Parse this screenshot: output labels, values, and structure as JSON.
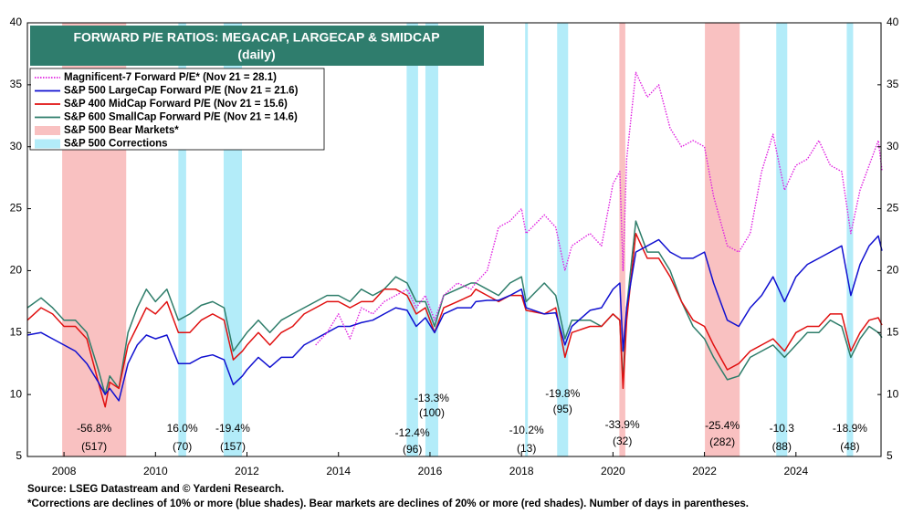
{
  "chart_data": {
    "type": "line",
    "title": "FORWARD P/E RATIOS: MEGACAP, LARGECAP & SMIDCAP",
    "subtitle": "(daily)",
    "source": "Source: LSEG Datastream and © Yardeni Research.",
    "note": "*Corrections are declines of 10% or more (blue shades). Bear markets are declines of 20% or more (red shades). Number of days in parentheses.",
    "xlim": [
      2007.2,
      2025.86
    ],
    "xticks": [
      2008,
      2010,
      2012,
      2014,
      2016,
      2018,
      2020,
      2022,
      2024
    ],
    "ylim": [
      5,
      40
    ],
    "yticks": [
      5,
      10,
      15,
      20,
      25,
      30,
      35,
      40
    ],
    "x": [
      2007.2,
      2007.5,
      2007.75,
      2008.0,
      2008.25,
      2008.5,
      2008.75,
      2008.9,
      2009.0,
      2009.2,
      2009.4,
      2009.6,
      2009.8,
      2010.0,
      2010.25,
      2010.5,
      2010.75,
      2011.0,
      2011.25,
      2011.5,
      2011.7,
      2011.9,
      2012.0,
      2012.25,
      2012.5,
      2012.75,
      2013.0,
      2013.25,
      2013.5,
      2013.75,
      2014.0,
      2014.25,
      2014.5,
      2014.75,
      2015.0,
      2015.25,
      2015.5,
      2015.7,
      2015.9,
      2016.1,
      2016.3,
      2016.6,
      2016.9,
      2017.0,
      2017.25,
      2017.5,
      2017.75,
      2018.0,
      2018.1,
      2018.5,
      2018.75,
      2018.95,
      2019.1,
      2019.5,
      2019.75,
      2020.0,
      2020.15,
      2020.22,
      2020.3,
      2020.5,
      2020.75,
      2021.0,
      2021.25,
      2021.5,
      2021.75,
      2022.0,
      2022.2,
      2022.5,
      2022.75,
      2023.0,
      2023.25,
      2023.5,
      2023.75,
      2024.0,
      2024.25,
      2024.5,
      2024.75,
      2025.0,
      2025.2,
      2025.4,
      2025.6,
      2025.8,
      2025.88
    ],
    "series": [
      {
        "name": "Magnificent-7 Forward P/E* (Nov 21 = 28.1)",
        "color": "#e020e0",
        "dash": true,
        "values": [
          null,
          null,
          null,
          null,
          null,
          null,
          null,
          null,
          null,
          null,
          null,
          null,
          null,
          null,
          null,
          null,
          null,
          null,
          null,
          null,
          null,
          null,
          null,
          null,
          null,
          null,
          null,
          null,
          14,
          15,
          16.5,
          14.5,
          17,
          16.5,
          17.5,
          18,
          18.5,
          17,
          18,
          16,
          18,
          19,
          18.5,
          19,
          20,
          23.5,
          24,
          25,
          23,
          24.5,
          23.5,
          20,
          22,
          23,
          22,
          27,
          28,
          20,
          29,
          36,
          34,
          35,
          31.5,
          30,
          30.5,
          30,
          26,
          22,
          21.5,
          23,
          28,
          31,
          26.5,
          28.5,
          29,
          30.5,
          28.5,
          28,
          23,
          26.5,
          28.5,
          30.5,
          28.1
        ]
      },
      {
        "name": "S&P 500 LargeCap Forward P/E (Nov 21 = 21.6)",
        "color": "#1010d0",
        "dash": false,
        "values": [
          14.8,
          15,
          14.5,
          14,
          13.5,
          12.5,
          11,
          10,
          10.5,
          9.5,
          12.5,
          14,
          14.8,
          14.5,
          14.8,
          12.5,
          12.5,
          13,
          13.2,
          12.8,
          10.8,
          11.5,
          12,
          13,
          12.2,
          13,
          13,
          14,
          14.5,
          15,
          15.5,
          15.5,
          15.8,
          16,
          16.5,
          17,
          16.8,
          15.5,
          16.2,
          15,
          16.5,
          17,
          17,
          17.5,
          17.6,
          17.6,
          18,
          18.5,
          17,
          16.5,
          16.6,
          14,
          15.5,
          16.8,
          17,
          18.5,
          19,
          13.5,
          17,
          21.5,
          22,
          22.5,
          21.5,
          21,
          21,
          21.5,
          19,
          16,
          15.5,
          17,
          18,
          19.5,
          17.5,
          19.5,
          20.5,
          21,
          21.5,
          22,
          18,
          20.5,
          22,
          22.8,
          21.6
        ]
      },
      {
        "name": "S&P 400 MidCap Forward P/E (Nov 21 = 15.6)",
        "color": "#e01010",
        "dash": false,
        "values": [
          16,
          17,
          16.5,
          15.5,
          15.5,
          14.5,
          11,
          9,
          11,
          10.5,
          14,
          15.5,
          17,
          16.5,
          17.5,
          15,
          15,
          16,
          16.5,
          16,
          12.8,
          13.5,
          14,
          15,
          14,
          15,
          15.5,
          16.5,
          17,
          17.5,
          17.5,
          17,
          17.5,
          17.5,
          18.5,
          18.5,
          18,
          16.5,
          17,
          15,
          17,
          17.5,
          18,
          18.5,
          18,
          17.5,
          18,
          18,
          16.8,
          16.5,
          17,
          13,
          15,
          15.5,
          15.5,
          16.5,
          16,
          10.5,
          16,
          23,
          21,
          21,
          19.5,
          17.5,
          16,
          15.5,
          14,
          12,
          12.5,
          13.5,
          14,
          14.5,
          13.5,
          15,
          15.5,
          15.5,
          16.5,
          16.5,
          13.5,
          15,
          16,
          16.2,
          15.6
        ]
      },
      {
        "name": "S&P 600 SmallCap Forward P/E (Nov 21 = 14.6)",
        "color": "#2e7d6a",
        "dash": false,
        "values": [
          17,
          17.8,
          17,
          16,
          16,
          15,
          12,
          10,
          11.5,
          10.5,
          15,
          17,
          18.5,
          17.5,
          18.5,
          16,
          16.5,
          17.2,
          17.5,
          17,
          13.5,
          14.5,
          15,
          16,
          15,
          16,
          16.5,
          17,
          17.5,
          18,
          18,
          17.5,
          18.5,
          18,
          18.5,
          19.5,
          19,
          17.5,
          17.5,
          15.5,
          18,
          18.5,
          19,
          19,
          18.5,
          18,
          19,
          19.5,
          17.5,
          19,
          18,
          14.5,
          16,
          16,
          15.5,
          16.5,
          16,
          11,
          17,
          24,
          21.5,
          21.5,
          20,
          17.5,
          15.5,
          14.5,
          13,
          11.2,
          11.5,
          13,
          13.5,
          14,
          13,
          14,
          15,
          15,
          16,
          15.5,
          13,
          14.5,
          15.5,
          15,
          14.6
        ]
      }
    ],
    "shade_legend": [
      {
        "name": "S&P 500 Bear Markets*",
        "color": "#f9c1c1"
      },
      {
        "name": "S&P 500 Corrections",
        "color": "#b3ecf9"
      }
    ],
    "shades": [
      {
        "kind": 0,
        "start": 2007.96,
        "end": 2009.36,
        "change": "-56.8%",
        "days": "(517)"
      },
      {
        "kind": 1,
        "start": 2010.5,
        "end": 2010.67,
        "change": "16.0%",
        "days": "(70)"
      },
      {
        "kind": 1,
        "start": 2011.49,
        "end": 2011.89,
        "change": "-19.4%",
        "days": "(157)"
      },
      {
        "kind": 1,
        "start": 2015.49,
        "end": 2015.74,
        "change": "-12.4%",
        "days": "(96)"
      },
      {
        "kind": 1,
        "start": 2015.9,
        "end": 2016.18,
        "change": "-13.3%",
        "days": "(100)"
      },
      {
        "kind": 1,
        "start": 2018.08,
        "end": 2018.14,
        "change": "-10.2%",
        "days": "(13)"
      },
      {
        "kind": 1,
        "start": 2018.78,
        "end": 2019.02,
        "change": "-19.8%",
        "days": "(95)"
      },
      {
        "kind": 0,
        "start": 2020.14,
        "end": 2020.27,
        "change": "-33.9%",
        "days": "(32)"
      },
      {
        "kind": 0,
        "start": 2022.01,
        "end": 2022.77,
        "change": "-25.4%",
        "days": "(282)"
      },
      {
        "kind": 1,
        "start": 2023.57,
        "end": 2023.81,
        "change": "-10.3",
        "days": "(88)"
      },
      {
        "kind": 1,
        "start": 2025.11,
        "end": 2025.25,
        "change": "-18.9%",
        "days": "(48)"
      }
    ]
  }
}
